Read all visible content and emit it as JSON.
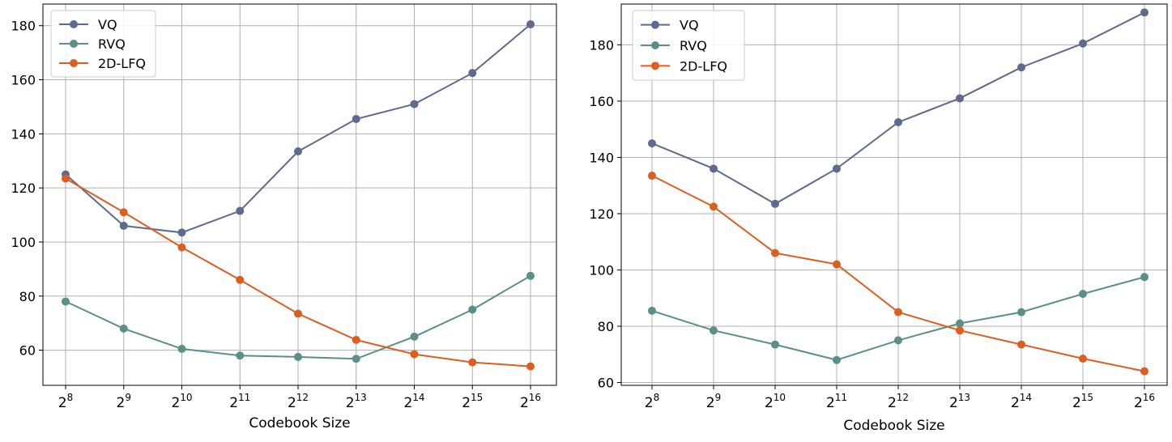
{
  "chart_data": [
    {
      "type": "line",
      "title": "",
      "xlabel": "Codebook Size",
      "ylabel": "",
      "categories": [
        "2^8",
        "2^9",
        "2^10",
        "2^11",
        "2^12",
        "2^13",
        "2^14",
        "2^15",
        "2^16"
      ],
      "category_base": "2",
      "category_exponents": [
        "8",
        "9",
        "10",
        "11",
        "12",
        "13",
        "14",
        "15",
        "16"
      ],
      "yticks": [
        60,
        80,
        100,
        120,
        140,
        160,
        180
      ],
      "ylim": [
        47,
        188
      ],
      "grid": true,
      "legend": "top-left",
      "series": [
        {
          "name": "VQ",
          "color": "#5f6a8f",
          "values": [
            125,
            106,
            103.5,
            111.5,
            133.5,
            145.5,
            151,
            162.5,
            180.5
          ]
        },
        {
          "name": "RVQ",
          "color": "#5b8f87",
          "values": [
            78,
            68,
            60.5,
            58,
            57.5,
            56.8,
            65,
            75,
            87.5
          ]
        },
        {
          "name": "2D-LFQ",
          "color": "#dc5e20",
          "values": [
            123.5,
            111,
            98,
            86,
            73.5,
            63.8,
            58.5,
            55.5,
            54
          ]
        }
      ]
    },
    {
      "type": "line",
      "title": "",
      "xlabel": "Codebook Size",
      "ylabel": "",
      "categories": [
        "2^8",
        "2^9",
        "2^10",
        "2^11",
        "2^12",
        "2^13",
        "2^14",
        "2^15",
        "2^16"
      ],
      "category_base": "2",
      "category_exponents": [
        "8",
        "9",
        "10",
        "11",
        "12",
        "13",
        "14",
        "15",
        "16"
      ],
      "yticks": [
        60,
        80,
        100,
        120,
        140,
        160,
        180
      ],
      "ylim": [
        59,
        194.5
      ],
      "grid": true,
      "legend": "top-left",
      "series": [
        {
          "name": "VQ",
          "color": "#5f6a8f",
          "values": [
            145,
            136,
            123.5,
            136,
            152.5,
            161,
            172,
            180.5,
            191.5
          ]
        },
        {
          "name": "RVQ",
          "color": "#5b8f87",
          "values": [
            85.5,
            78.5,
            73.5,
            68,
            75,
            81,
            85,
            91.5,
            97.5
          ]
        },
        {
          "name": "2D-LFQ",
          "color": "#dc5e20",
          "values": [
            133.5,
            122.5,
            106,
            102,
            85,
            78.5,
            73.5,
            68.5,
            64
          ]
        }
      ]
    }
  ]
}
